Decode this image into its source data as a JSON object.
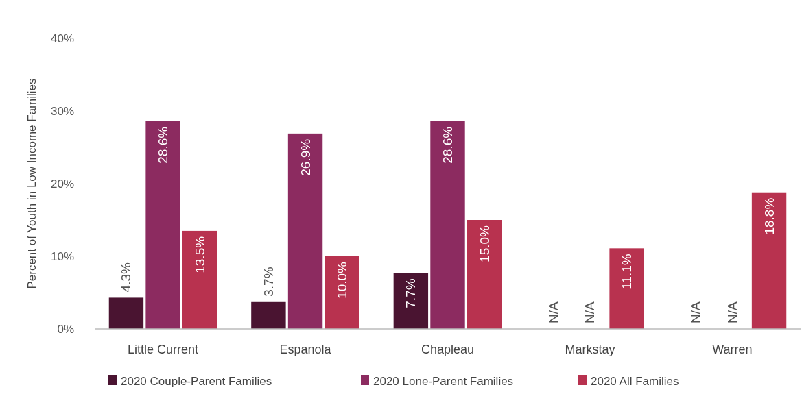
{
  "chart_data": {
    "type": "bar",
    "ylabel": "Percent of Youth in Low Income Families",
    "categories": [
      "Little Current",
      "Espanola",
      "Chapleau",
      "Markstay",
      "Warren"
    ],
    "series": [
      {
        "name": "2020 Couple-Parent Families",
        "color": "#4a1431",
        "values": [
          4.3,
          3.7,
          7.7,
          null,
          null
        ],
        "value_labels": [
          "4.3%",
          "3.7%",
          "7.7%",
          "N/A",
          "N/A"
        ]
      },
      {
        "name": "2020 Lone-Parent Families",
        "color": "#8c2b60",
        "values": [
          28.6,
          26.9,
          28.6,
          null,
          null
        ],
        "value_labels": [
          "28.6%",
          "26.9%",
          "28.6%",
          "N/A",
          "N/A"
        ]
      },
      {
        "name": "2020 All Families",
        "color": "#b8324f",
        "values": [
          13.5,
          10.0,
          15.0,
          11.1,
          18.8
        ],
        "value_labels": [
          "13.5%",
          "10.0%",
          "15.0%",
          "11.1%",
          "18.8%"
        ]
      }
    ],
    "ylim": [
      0,
      40
    ],
    "yticks": [
      {
        "value": 0,
        "label": "0%"
      },
      {
        "value": 10,
        "label": "10%"
      },
      {
        "value": 20,
        "label": "20%"
      },
      {
        "value": 30,
        "label": "30%"
      },
      {
        "value": 40,
        "label": "40%"
      }
    ],
    "grid": false,
    "legend": "bottom"
  }
}
